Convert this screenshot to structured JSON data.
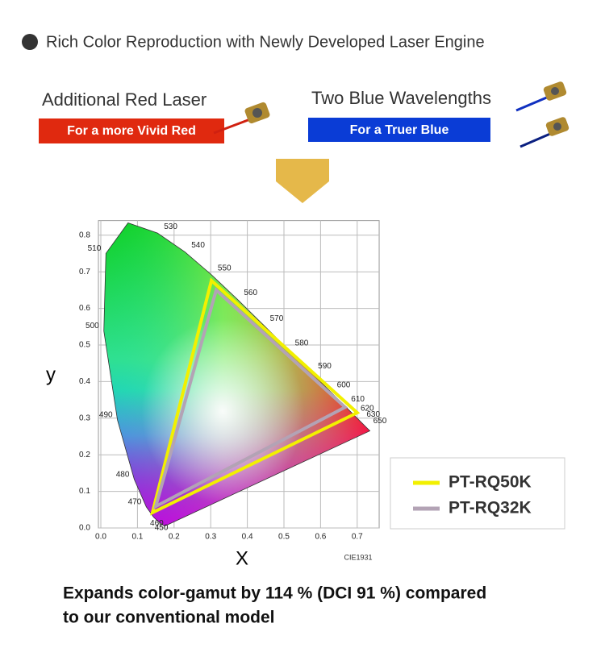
{
  "header": {
    "title": "Rich Color Reproduction with Newly Developed Laser Engine"
  },
  "lasers": [
    {
      "title": "Additional Red Laser",
      "badge": "For a more Vivid Red"
    },
    {
      "title": "Two Blue Wavelengths",
      "badge": "For a Truer Blue"
    }
  ],
  "chart_data": {
    "type": "line",
    "x_label": "X",
    "y_label": "y",
    "annotation": "CIE1931",
    "xlim": [
      0,
      0.76
    ],
    "ylim": [
      0,
      0.84
    ],
    "xticks": [
      {
        "value": 0,
        "label": "0.0"
      },
      0.1,
      0.2,
      0.3,
      0.4,
      0.5,
      0.6,
      0.7
    ],
    "yticks": [
      {
        "value": 0,
        "label": "0.0"
      },
      0.1,
      0.2,
      0.3,
      0.4,
      0.5,
      0.6,
      0.7,
      0.8
    ],
    "grid": true,
    "legend": "lower right",
    "locus": {
      "labels": [
        null,
        "450",
        "460",
        "470",
        "480",
        "490",
        "500",
        "510",
        null,
        "530",
        "540",
        "550",
        "560",
        "570",
        "580",
        "590",
        "600",
        "610",
        "620",
        "630",
        "650",
        null
      ],
      "x": [
        0.1741,
        0.1566,
        0.144,
        0.1241,
        0.0913,
        0.0454,
        0.0082,
        0.0139,
        0.0743,
        0.1547,
        0.2296,
        0.3016,
        0.3731,
        0.4441,
        0.5125,
        0.5752,
        0.627,
        0.6658,
        0.6915,
        0.7079,
        0.726,
        0.7347
      ],
      "y": [
        0.005,
        0.0177,
        0.0297,
        0.0578,
        0.1327,
        0.295,
        0.5384,
        0.7502,
        0.8338,
        0.8059,
        0.7543,
        0.6923,
        0.6245,
        0.5547,
        0.4866,
        0.4242,
        0.3725,
        0.334,
        0.3083,
        0.292,
        0.274,
        0.2653
      ]
    },
    "series": [
      {
        "name": "PT-RQ50K",
        "color": "#f2f000",
        "x": [
          0.7,
          0.302,
          0.141
        ],
        "y": [
          0.315,
          0.676,
          0.042
        ]
      },
      {
        "name": "PT-RQ32K",
        "color": "#b3a3b5",
        "x": [
          0.667,
          0.315,
          0.15
        ],
        "y": [
          0.33,
          0.65,
          0.059
        ]
      }
    ]
  },
  "caption": {
    "lines": [
      "Expands color-gamut by 114 % (DCI 91 %) compared",
      "to our conventional model"
    ]
  }
}
